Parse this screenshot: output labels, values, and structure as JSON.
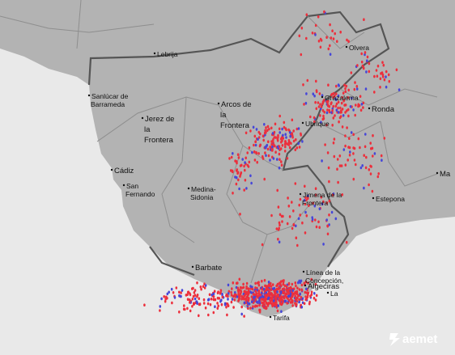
{
  "places": [
    {
      "lines": [
        "Lebrija"
      ]
    },
    {
      "lines": [
        "Olvera"
      ]
    },
    {
      "lines": [
        "Sanlúcar de",
        "Barrameda"
      ]
    },
    {
      "lines": [
        "Jerez de",
        "la",
        "Frontera"
      ]
    },
    {
      "lines": [
        "Arcos de",
        "la",
        "Frontera"
      ]
    },
    {
      "lines": [
        "Grazalema"
      ]
    },
    {
      "lines": [
        "Ubrique"
      ]
    },
    {
      "lines": [
        "Ronda"
      ]
    },
    {
      "lines": [
        "Cádiz"
      ]
    },
    {
      "lines": [
        "San",
        "Fernando"
      ]
    },
    {
      "lines": [
        "Medina-",
        "Sidonia"
      ]
    },
    {
      "lines": [
        "Jimena de la",
        "Frontera"
      ]
    },
    {
      "lines": [
        "Estepona"
      ]
    },
    {
      "lines": [
        "Ma"
      ]
    },
    {
      "lines": [
        "Barbate"
      ]
    },
    {
      "lines": [
        "Línea de la",
        "Concepción,"
      ]
    },
    {
      "lines": [
        "Algeciras"
      ]
    },
    {
      "lines": [
        "La"
      ]
    },
    {
      "lines": [
        "Tarifa"
      ]
    }
  ],
  "logo": "aemet"
}
